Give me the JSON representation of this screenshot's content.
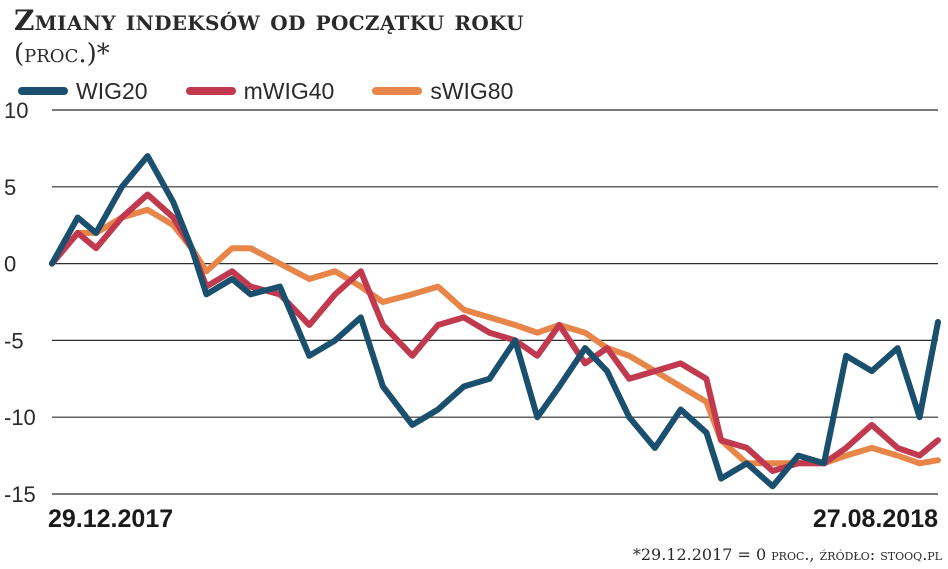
{
  "header": {
    "title": "Zmiany indeksów od początku roku",
    "subtitle": "(proc.)*"
  },
  "footnote": "*29.12.2017 = 0 proc., źródło: stooq.pl",
  "chart_data": {
    "type": "line",
    "title": "Zmiany indeksów od początku roku",
    "subtitle": "(proc.)*",
    "xlabel": "",
    "ylabel": "",
    "x_start_label": "29.12.2017",
    "x_end_label": "27.08.2018",
    "x_range": [
      "2017-12-29",
      "2018-08-27"
    ],
    "ylim": [
      -15,
      10
    ],
    "yticks": [
      10,
      5,
      0,
      -5,
      -10,
      -15
    ],
    "grid": "horizontal",
    "legend_position": "top-left",
    "series": [
      {
        "name": "WIG20",
        "color": "#1b4f6e",
        "x": [
          "2017-12-29",
          "2018-01-05",
          "2018-01-10",
          "2018-01-17",
          "2018-01-24",
          "2018-01-31",
          "2018-02-05",
          "2018-02-09",
          "2018-02-16",
          "2018-02-21",
          "2018-03-01",
          "2018-03-09",
          "2018-03-16",
          "2018-03-23",
          "2018-03-29",
          "2018-04-06",
          "2018-04-13",
          "2018-04-20",
          "2018-04-27",
          "2018-05-04",
          "2018-05-10",
          "2018-05-16",
          "2018-05-23",
          "2018-05-29",
          "2018-06-04",
          "2018-06-11",
          "2018-06-18",
          "2018-06-25",
          "2018-06-29",
          "2018-07-06",
          "2018-07-13",
          "2018-07-20",
          "2018-07-27",
          "2018-08-02",
          "2018-08-09",
          "2018-08-16",
          "2018-08-22",
          "2018-08-27"
        ],
        "values": [
          0,
          3,
          2,
          5,
          7,
          4,
          1,
          -2,
          -1,
          -2,
          -1.5,
          -6,
          -5,
          -3.5,
          -8,
          -10.5,
          -9.5,
          -8,
          -7.5,
          -5,
          -10,
          -8,
          -5.5,
          -7,
          -10,
          -12,
          -9.5,
          -11,
          -14,
          -13,
          -14.5,
          -12.5,
          -13,
          -6,
          -7,
          -5.5,
          -10,
          -3.8
        ]
      },
      {
        "name": "mWIG40",
        "color": "#c0394e",
        "x": [
          "2017-12-29",
          "2018-01-05",
          "2018-01-10",
          "2018-01-17",
          "2018-01-24",
          "2018-01-31",
          "2018-02-05",
          "2018-02-09",
          "2018-02-16",
          "2018-02-21",
          "2018-03-01",
          "2018-03-09",
          "2018-03-16",
          "2018-03-23",
          "2018-03-29",
          "2018-04-06",
          "2018-04-13",
          "2018-04-20",
          "2018-04-27",
          "2018-05-04",
          "2018-05-10",
          "2018-05-16",
          "2018-05-23",
          "2018-05-29",
          "2018-06-04",
          "2018-06-11",
          "2018-06-18",
          "2018-06-25",
          "2018-06-29",
          "2018-07-06",
          "2018-07-13",
          "2018-07-20",
          "2018-07-27",
          "2018-08-02",
          "2018-08-09",
          "2018-08-16",
          "2018-08-22",
          "2018-08-27"
        ],
        "values": [
          0,
          2,
          1,
          3,
          4.5,
          3,
          1,
          -1.5,
          -0.5,
          -1.5,
          -2,
          -4,
          -2,
          -0.5,
          -4,
          -6,
          -4,
          -3.5,
          -4.5,
          -5,
          -6,
          -4,
          -6.5,
          -5.5,
          -7.5,
          -7,
          -6.5,
          -7.5,
          -11.5,
          -12,
          -13.5,
          -13,
          -13,
          -12,
          -10.5,
          -12,
          -12.5,
          -11.5
        ]
      },
      {
        "name": "sWIG80",
        "color": "#e8864a",
        "x": [
          "2017-12-29",
          "2018-01-05",
          "2018-01-10",
          "2018-01-17",
          "2018-01-24",
          "2018-01-31",
          "2018-02-05",
          "2018-02-09",
          "2018-02-16",
          "2018-02-21",
          "2018-03-01",
          "2018-03-09",
          "2018-03-16",
          "2018-03-23",
          "2018-03-29",
          "2018-04-06",
          "2018-04-13",
          "2018-04-20",
          "2018-04-27",
          "2018-05-04",
          "2018-05-10",
          "2018-05-16",
          "2018-05-23",
          "2018-05-29",
          "2018-06-04",
          "2018-06-11",
          "2018-06-18",
          "2018-06-25",
          "2018-06-29",
          "2018-07-06",
          "2018-07-13",
          "2018-07-20",
          "2018-07-27",
          "2018-08-02",
          "2018-08-09",
          "2018-08-16",
          "2018-08-22",
          "2018-08-27"
        ],
        "values": [
          0,
          2,
          2,
          3,
          3.5,
          2.5,
          1,
          -0.5,
          1,
          1,
          0,
          -1,
          -0.5,
          -1.5,
          -2.5,
          -2,
          -1.5,
          -3,
          -3.5,
          -4,
          -4.5,
          -4,
          -4.5,
          -5.5,
          -6,
          -7,
          -8,
          -9,
          -11.5,
          -13,
          -13,
          -13,
          -13,
          -12.5,
          -12,
          -12.5,
          -13,
          -12.8
        ]
      }
    ]
  }
}
